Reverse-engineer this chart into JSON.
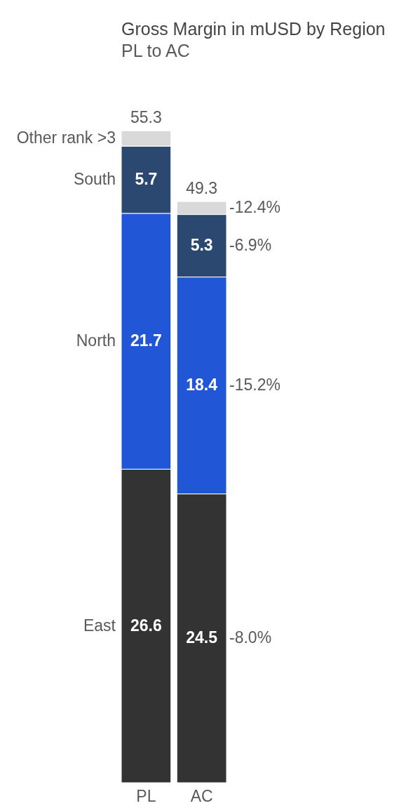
{
  "chart_data": {
    "type": "bar",
    "title": "Gross Margin in mUSD by Region",
    "subtitle": "PL to AC",
    "categories": [
      "PL",
      "AC"
    ],
    "stacked": true,
    "tick_labels": "x",
    "series": [
      {
        "name": "East",
        "color": "#333333",
        "values": [
          26.6,
          24.5
        ],
        "value_labels": [
          "26.6",
          "24.5"
        ]
      },
      {
        "name": "North",
        "color": "#2157d6",
        "values": [
          21.7,
          18.4
        ],
        "value_labels": [
          "21.7",
          "18.4"
        ]
      },
      {
        "name": "South",
        "color": "#2b4871",
        "values": [
          5.7,
          5.3
        ],
        "value_labels": [
          "5.7",
          "5.3"
        ]
      },
      {
        "name": "Other rank >3",
        "color": "#d9d9d9",
        "values": [
          1.3,
          1.1
        ]
      }
    ],
    "totals": [
      "55.3",
      "49.3"
    ],
    "annotations": [
      "-12.4%",
      "-6.9%",
      "-15.2%",
      "-8.0%"
    ]
  }
}
